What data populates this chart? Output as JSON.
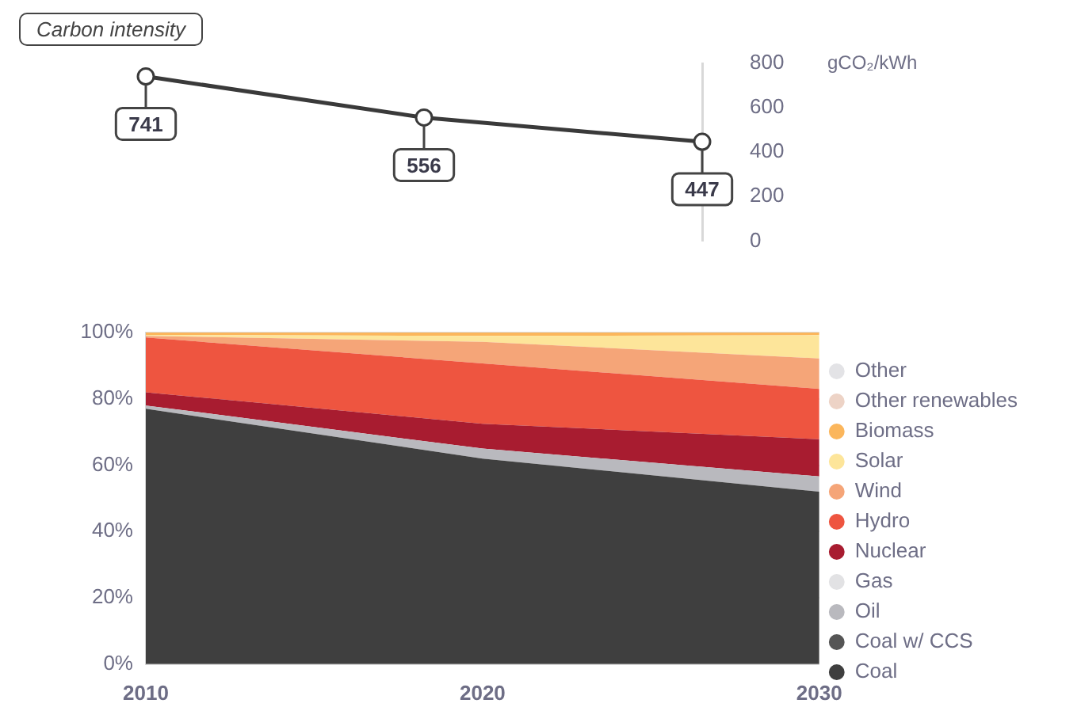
{
  "chart_data": [
    {
      "type": "line",
      "title": "Carbon intensity",
      "ylabel": "gCO₂/kWh",
      "categories": [
        null,
        null,
        null
      ],
      "values": [
        741,
        556,
        447
      ],
      "color": "#3a3a3a",
      "ylim": [
        0,
        800
      ],
      "yticks": [
        0,
        200,
        400,
        600,
        800
      ],
      "marker": "circle",
      "data_labels": true,
      "tick_labels": "y",
      "grid": false
    },
    {
      "type": "area",
      "stacked": true,
      "categories": [
        "2010",
        "2020",
        "2030"
      ],
      "ylim": [
        0,
        100
      ],
      "yticks": [
        {
          "value": 0,
          "label": "0%"
        },
        {
          "value": 20,
          "label": "20%"
        },
        {
          "value": 40,
          "label": "40%"
        },
        {
          "value": 60,
          "label": "60%"
        },
        {
          "value": 80,
          "label": "80%"
        },
        {
          "value": 100,
          "label": "100%"
        }
      ],
      "grid": "y",
      "legend": "right",
      "series": [
        {
          "name": "Coal",
          "color": "#3f3f3f",
          "values": [
            77,
            62,
            52
          ]
        },
        {
          "name": "Coal w/ CCS",
          "color": "#555555",
          "values": [
            null,
            null,
            null
          ]
        },
        {
          "name": "Oil",
          "color": "#b9b9be",
          "values": [
            1,
            3,
            4.6
          ]
        },
        {
          "name": "Gas",
          "color": "#e2e2e4",
          "values": [
            null,
            null,
            null
          ]
        },
        {
          "name": "Nuclear",
          "color": "#a81c30",
          "values": [
            4,
            7.5,
            11.2
          ]
        },
        {
          "name": "Hydro",
          "color": "#ee5540",
          "values": [
            16.5,
            18.2,
            15.2
          ]
        },
        {
          "name": "Wind",
          "color": "#f5a578",
          "values": [
            0.5,
            6.5,
            9.2
          ]
        },
        {
          "name": "Solar",
          "color": "#fde59a",
          "values": [
            0.3,
            1.8,
            7
          ]
        },
        {
          "name": "Biomass",
          "color": "#fbb65c",
          "values": [
            0.7,
            1,
            0.8
          ]
        },
        {
          "name": "Other renewables",
          "color": "#edd3c6",
          "values": [
            null,
            null,
            null
          ]
        },
        {
          "name": "Other",
          "color": "#e3e3e6",
          "values": [
            null,
            null,
            null
          ]
        }
      ]
    }
  ]
}
